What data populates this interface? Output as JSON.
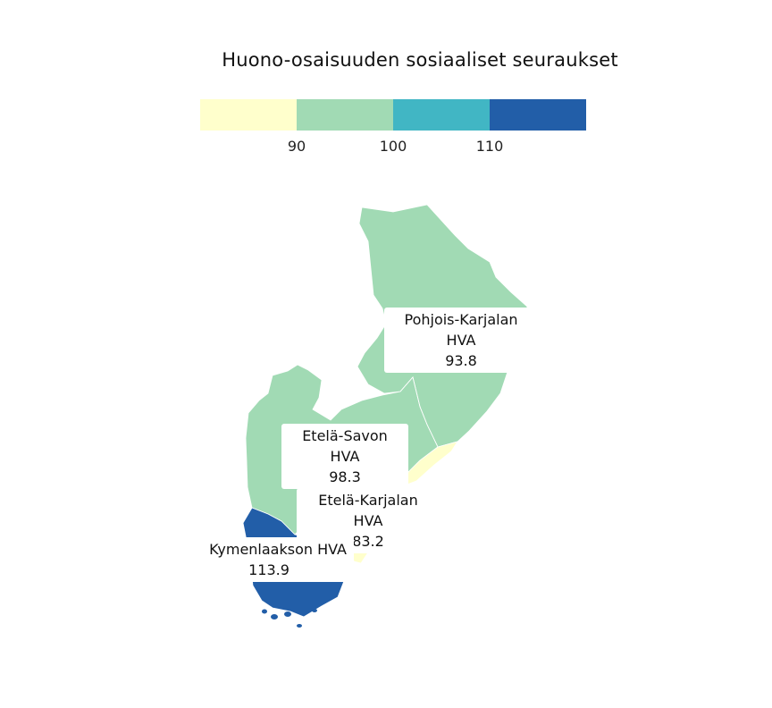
{
  "title": "Huono-osaisuuden sosiaaliset seuraukset",
  "legend": {
    "colors": [
      "#ffffcc",
      "#a1dab4",
      "#41b6c4",
      "#225ea8"
    ],
    "ticks": [
      "90",
      "100",
      "110"
    ]
  },
  "regions": [
    {
      "name": "Pohjois-Karjalan HVA",
      "value": "93.8",
      "color": "#a1dab4"
    },
    {
      "name": "Etelä-Savon HVA",
      "value": "98.3",
      "color": "#a1dab4"
    },
    {
      "name": "Etelä-Karjalan HVA",
      "value": "83.2",
      "color": "#ffffcc"
    },
    {
      "name": "Kymenlaakson HVA",
      "value": "113.9",
      "color": "#225ea8"
    }
  ]
}
